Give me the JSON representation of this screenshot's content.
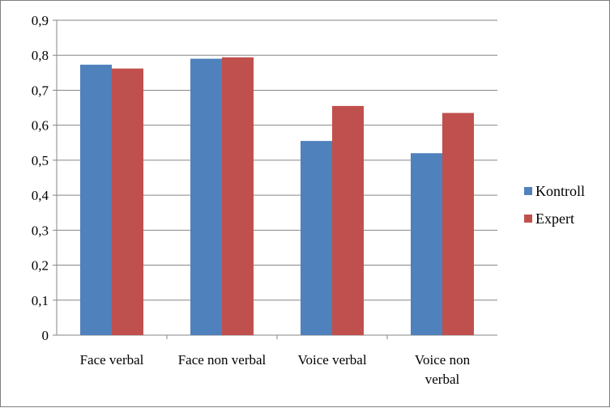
{
  "chart_data": {
    "type": "bar",
    "title": "",
    "xlabel": "",
    "ylabel": "",
    "categories": [
      [
        "Face verbal"
      ],
      [
        "Face non verbal"
      ],
      [
        "Voice verbal"
      ],
      [
        "Voice non",
        "verbal"
      ]
    ],
    "series": [
      {
        "name": "Kontroll",
        "color": "#4f81bd",
        "values": [
          0.773,
          0.79,
          0.555,
          0.52
        ]
      },
      {
        "name": "Expert",
        "color": "#c0504d",
        "values": [
          0.762,
          0.794,
          0.655,
          0.635
        ]
      }
    ],
    "ylim": [
      0,
      0.9
    ],
    "yticks": [
      "0",
      "0,1",
      "0,2",
      "0,3",
      "0,4",
      "0,5",
      "0,6",
      "0,7",
      "0,8",
      "0,9"
    ],
    "grid": true,
    "legend_position": "right"
  }
}
